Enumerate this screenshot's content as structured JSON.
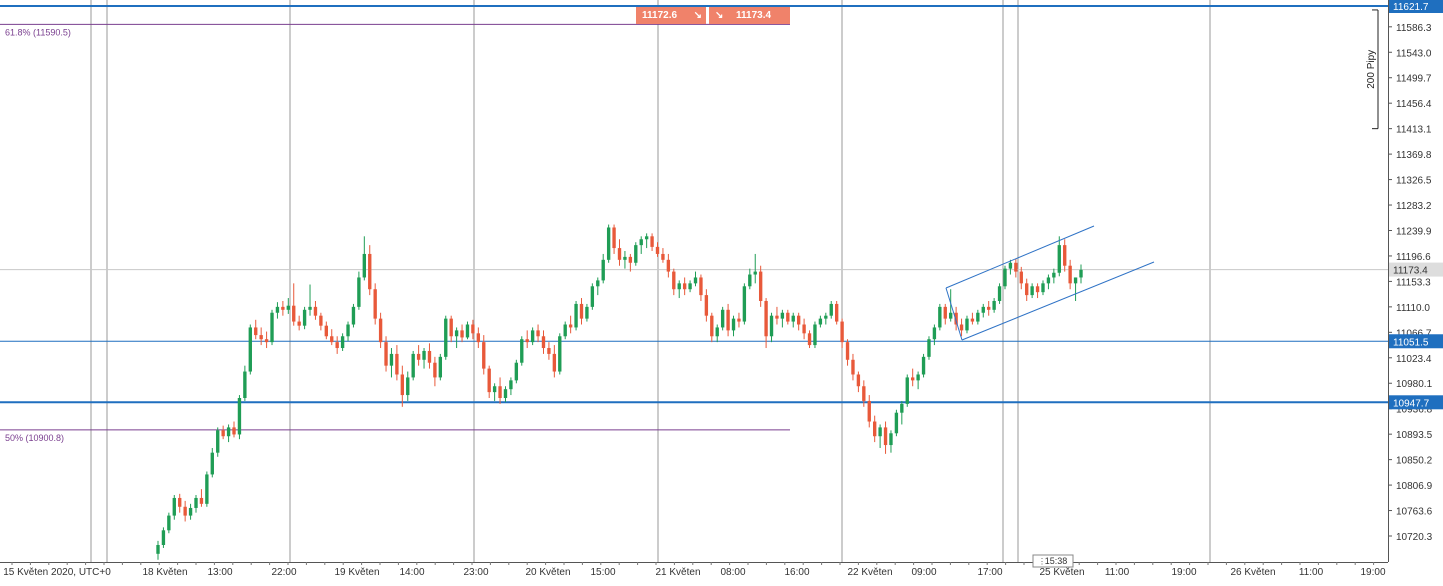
{
  "chart_data": {
    "type": "candlestick",
    "title": "",
    "y_axis": {
      "position": "right",
      "ticks": [
        11586.3,
        11543.0,
        11499.7,
        11456.4,
        11413.1,
        11369.8,
        11326.5,
        11283.2,
        11239.9,
        11196.6,
        11153.3,
        11110.0,
        11066.7,
        11023.4,
        10980.1,
        10936.8,
        10893.5,
        10850.2,
        10806.9,
        10763.6,
        10720.3
      ],
      "range": [
        10680,
        11635
      ]
    },
    "x_axis": {
      "timezone_label": "UTC+0",
      "ticks": [
        "15 Květen 2020, UTC+0",
        "18 Květen",
        "13:00",
        "22:00",
        "19 Květen",
        "14:00",
        "23:00",
        "20 Květen",
        "15:00",
        "21 Květen",
        "08:00",
        "16:00",
        "22 Květen",
        "09:00",
        "17:00",
        "25 Květen",
        "11:00",
        "19:00",
        "26 Květen",
        "11:00",
        "19:00"
      ]
    },
    "horizontal_levels": [
      {
        "value": 11621.7,
        "label": "11621.7",
        "color": "#1f6fbf",
        "style": "thick"
      },
      {
        "value": 11051.5,
        "label": "11051.5",
        "color": "#1f6fbf",
        "style": "thin"
      },
      {
        "value": 10947.7,
        "label": "10947.7",
        "color": "#1f6fbf",
        "style": "thick"
      }
    ],
    "fibonacci": [
      {
        "label": "61.8% (11590.5)",
        "value": 11590.5,
        "color": "#7a3f8f"
      },
      {
        "label": "50% (10900.8)",
        "value": 10900.8,
        "color": "#7a3f8f"
      }
    ],
    "current_price": {
      "value": 11173.4,
      "label": "11173.4"
    },
    "quote": {
      "sell": "11172.6",
      "buy": "11173.4"
    },
    "range_marker": {
      "label": "200 Pipy",
      "from": 11413.1,
      "to": 11615.0
    },
    "time_marker": "15:38",
    "trend_channel": {
      "upper": [
        [
          11139.5,
          11244.0
        ],
        [
          11150.0,
          11245.0
        ]
      ],
      "color": "#2f73c6"
    },
    "colors": {
      "up": "#1f9d55",
      "down": "#e8593a",
      "level": "#1f6fbf",
      "fib": "#7a3f8f"
    },
    "candles": [
      {
        "o": 10690,
        "h": 10712,
        "l": 10680,
        "c": 10705
      },
      {
        "o": 10705,
        "h": 10735,
        "l": 10700,
        "c": 10730
      },
      {
        "o": 10730,
        "h": 10760,
        "l": 10725,
        "c": 10755
      },
      {
        "o": 10755,
        "h": 10790,
        "l": 10748,
        "c": 10785
      },
      {
        "o": 10785,
        "h": 10792,
        "l": 10760,
        "c": 10770
      },
      {
        "o": 10770,
        "h": 10780,
        "l": 10745,
        "c": 10755
      },
      {
        "o": 10755,
        "h": 10775,
        "l": 10748,
        "c": 10768
      },
      {
        "o": 10768,
        "h": 10790,
        "l": 10760,
        "c": 10785
      },
      {
        "o": 10785,
        "h": 10800,
        "l": 10770,
        "c": 10775
      },
      {
        "o": 10775,
        "h": 10830,
        "l": 10770,
        "c": 10825
      },
      {
        "o": 10825,
        "h": 10870,
        "l": 10820,
        "c": 10862
      },
      {
        "o": 10862,
        "h": 10905,
        "l": 10855,
        "c": 10900
      },
      {
        "o": 10900,
        "h": 10908,
        "l": 10885,
        "c": 10890
      },
      {
        "o": 10890,
        "h": 10910,
        "l": 10880,
        "c": 10905
      },
      {
        "o": 10905,
        "h": 10915,
        "l": 10888,
        "c": 10893
      },
      {
        "o": 10893,
        "h": 10960,
        "l": 10885,
        "c": 10955
      },
      {
        "o": 10955,
        "h": 11010,
        "l": 10950,
        "c": 11000
      },
      {
        "o": 11000,
        "h": 11080,
        "l": 10995,
        "c": 11075
      },
      {
        "o": 11075,
        "h": 11088,
        "l": 11055,
        "c": 11062
      },
      {
        "o": 11062,
        "h": 11075,
        "l": 11045,
        "c": 11055
      },
      {
        "o": 11055,
        "h": 11068,
        "l": 11040,
        "c": 11050
      },
      {
        "o": 11050,
        "h": 11105,
        "l": 11045,
        "c": 11100
      },
      {
        "o": 11100,
        "h": 11118,
        "l": 11090,
        "c": 11110
      },
      {
        "o": 11110,
        "h": 11120,
        "l": 11095,
        "c": 11105
      },
      {
        "o": 11105,
        "h": 11125,
        "l": 11098,
        "c": 11112
      },
      {
        "o": 11112,
        "h": 11150,
        "l": 11078,
        "c": 11085
      },
      {
        "o": 11085,
        "h": 11095,
        "l": 11070,
        "c": 11078
      },
      {
        "o": 11078,
        "h": 11110,
        "l": 11072,
        "c": 11105
      },
      {
        "o": 11105,
        "h": 11148,
        "l": 11095,
        "c": 11110
      },
      {
        "o": 11110,
        "h": 11120,
        "l": 11088,
        "c": 11095
      },
      {
        "o": 11095,
        "h": 11100,
        "l": 11070,
        "c": 11078
      },
      {
        "o": 11078,
        "h": 11085,
        "l": 11055,
        "c": 11060
      },
      {
        "o": 11060,
        "h": 11072,
        "l": 11045,
        "c": 11050
      },
      {
        "o": 11050,
        "h": 11060,
        "l": 11030,
        "c": 11040
      },
      {
        "o": 11040,
        "h": 11065,
        "l": 11035,
        "c": 11060
      },
      {
        "o": 11060,
        "h": 11085,
        "l": 11052,
        "c": 11080
      },
      {
        "o": 11080,
        "h": 11115,
        "l": 11075,
        "c": 11110
      },
      {
        "o": 11110,
        "h": 11170,
        "l": 11105,
        "c": 11160
      },
      {
        "o": 11160,
        "h": 11230,
        "l": 11155,
        "c": 11200
      },
      {
        "o": 11200,
        "h": 11215,
        "l": 11130,
        "c": 11140
      },
      {
        "o": 11140,
        "h": 11150,
        "l": 11080,
        "c": 11090
      },
      {
        "o": 11090,
        "h": 11100,
        "l": 11040,
        "c": 11050
      },
      {
        "o": 11050,
        "h": 11060,
        "l": 11000,
        "c": 11010
      },
      {
        "o": 11010,
        "h": 11040,
        "l": 10990,
        "c": 11030
      },
      {
        "o": 11030,
        "h": 11045,
        "l": 10985,
        "c": 10995
      },
      {
        "o": 10995,
        "h": 11010,
        "l": 10940,
        "c": 10960
      },
      {
        "o": 10960,
        "h": 11000,
        "l": 10950,
        "c": 10990
      },
      {
        "o": 10990,
        "h": 11035,
        "l": 10985,
        "c": 11030
      },
      {
        "o": 11030,
        "h": 11045,
        "l": 11010,
        "c": 11020
      },
      {
        "o": 11020,
        "h": 11040,
        "l": 11005,
        "c": 11035
      },
      {
        "o": 11035,
        "h": 11048,
        "l": 11005,
        "c": 11015
      },
      {
        "o": 11015,
        "h": 11025,
        "l": 10975,
        "c": 10990
      },
      {
        "o": 10990,
        "h": 11030,
        "l": 10985,
        "c": 11025
      },
      {
        "o": 11025,
        "h": 11095,
        "l": 11020,
        "c": 11090
      },
      {
        "o": 11090,
        "h": 11095,
        "l": 11050,
        "c": 11060
      },
      {
        "o": 11060,
        "h": 11075,
        "l": 11040,
        "c": 11070
      },
      {
        "o": 11070,
        "h": 11080,
        "l": 11050,
        "c": 11058
      },
      {
        "o": 11058,
        "h": 11085,
        "l": 11055,
        "c": 11080
      },
      {
        "o": 11080,
        "h": 11088,
        "l": 11055,
        "c": 11065
      },
      {
        "o": 11065,
        "h": 11075,
        "l": 11040,
        "c": 11050
      },
      {
        "o": 11050,
        "h": 11062,
        "l": 10995,
        "c": 11005
      },
      {
        "o": 11005,
        "h": 11010,
        "l": 10955,
        "c": 10965
      },
      {
        "o": 10965,
        "h": 10980,
        "l": 10950,
        "c": 10975
      },
      {
        "o": 10975,
        "h": 10990,
        "l": 10945,
        "c": 10955
      },
      {
        "o": 10955,
        "h": 10975,
        "l": 10948,
        "c": 10970
      },
      {
        "o": 10970,
        "h": 10990,
        "l": 10960,
        "c": 10985
      },
      {
        "o": 10985,
        "h": 11020,
        "l": 10980,
        "c": 11015
      },
      {
        "o": 11015,
        "h": 11060,
        "l": 11010,
        "c": 11055
      },
      {
        "o": 11055,
        "h": 11070,
        "l": 11040,
        "c": 11050
      },
      {
        "o": 11050,
        "h": 11075,
        "l": 11045,
        "c": 11070
      },
      {
        "o": 11070,
        "h": 11080,
        "l": 11050,
        "c": 11060
      },
      {
        "o": 11060,
        "h": 11070,
        "l": 11030,
        "c": 11040
      },
      {
        "o": 11040,
        "h": 11050,
        "l": 11020,
        "c": 11030
      },
      {
        "o": 11030,
        "h": 11045,
        "l": 10990,
        "c": 11000
      },
      {
        "o": 11000,
        "h": 11065,
        "l": 10995,
        "c": 11060
      },
      {
        "o": 11060,
        "h": 11085,
        "l": 11055,
        "c": 11080
      },
      {
        "o": 11080,
        "h": 11095,
        "l": 11065,
        "c": 11075
      },
      {
        "o": 11075,
        "h": 11120,
        "l": 11070,
        "c": 11115
      },
      {
        "o": 11115,
        "h": 11125,
        "l": 11080,
        "c": 11090
      },
      {
        "o": 11090,
        "h": 11115,
        "l": 11085,
        "c": 11110
      },
      {
        "o": 11110,
        "h": 11150,
        "l": 11105,
        "c": 11145
      },
      {
        "o": 11145,
        "h": 11160,
        "l": 11130,
        "c": 11155
      },
      {
        "o": 11155,
        "h": 11200,
        "l": 11150,
        "c": 11190
      },
      {
        "o": 11190,
        "h": 11250,
        "l": 11185,
        "c": 11245
      },
      {
        "o": 11245,
        "h": 11250,
        "l": 11200,
        "c": 11210
      },
      {
        "o": 11210,
        "h": 11225,
        "l": 11180,
        "c": 11190
      },
      {
        "o": 11190,
        "h": 11205,
        "l": 11175,
        "c": 11195
      },
      {
        "o": 11195,
        "h": 11200,
        "l": 11170,
        "c": 11185
      },
      {
        "o": 11185,
        "h": 11220,
        "l": 11180,
        "c": 11215
      },
      {
        "o": 11215,
        "h": 11230,
        "l": 11200,
        "c": 11225
      },
      {
        "o": 11225,
        "h": 11235,
        "l": 11210,
        "c": 11230
      },
      {
        "o": 11230,
        "h": 11235,
        "l": 11205,
        "c": 11212
      },
      {
        "o": 11212,
        "h": 11220,
        "l": 11195,
        "c": 11200
      },
      {
        "o": 11200,
        "h": 11210,
        "l": 11185,
        "c": 11190
      },
      {
        "o": 11190,
        "h": 11200,
        "l": 11160,
        "c": 11170
      },
      {
        "o": 11170,
        "h": 11175,
        "l": 11130,
        "c": 11140
      },
      {
        "o": 11140,
        "h": 11155,
        "l": 11125,
        "c": 11150
      },
      {
        "o": 11150,
        "h": 11160,
        "l": 11130,
        "c": 11140
      },
      {
        "o": 11140,
        "h": 11155,
        "l": 11135,
        "c": 11150
      },
      {
        "o": 11150,
        "h": 11170,
        "l": 11145,
        "c": 11160
      },
      {
        "o": 11160,
        "h": 11165,
        "l": 11120,
        "c": 11130
      },
      {
        "o": 11130,
        "h": 11140,
        "l": 11085,
        "c": 11095
      },
      {
        "o": 11095,
        "h": 11100,
        "l": 11050,
        "c": 11060
      },
      {
        "o": 11060,
        "h": 11080,
        "l": 11050,
        "c": 11075
      },
      {
        "o": 11075,
        "h": 11110,
        "l": 11070,
        "c": 11105
      },
      {
        "o": 11105,
        "h": 11115,
        "l": 11060,
        "c": 11070
      },
      {
        "o": 11070,
        "h": 11095,
        "l": 11060,
        "c": 11090
      },
      {
        "o": 11090,
        "h": 11100,
        "l": 11075,
        "c": 11085
      },
      {
        "o": 11085,
        "h": 11150,
        "l": 11080,
        "c": 11145
      },
      {
        "o": 11145,
        "h": 11175,
        "l": 11140,
        "c": 11165
      },
      {
        "o": 11165,
        "h": 11200,
        "l": 11150,
        "c": 11170
      },
      {
        "o": 11170,
        "h": 11180,
        "l": 11110,
        "c": 11120
      },
      {
        "o": 11120,
        "h": 11125,
        "l": 11040,
        "c": 11060
      },
      {
        "o": 11060,
        "h": 11100,
        "l": 11050,
        "c": 11095
      },
      {
        "o": 11095,
        "h": 11110,
        "l": 11080,
        "c": 11090
      },
      {
        "o": 11090,
        "h": 11105,
        "l": 11075,
        "c": 11100
      },
      {
        "o": 11100,
        "h": 11105,
        "l": 11080,
        "c": 11085
      },
      {
        "o": 11085,
        "h": 11100,
        "l": 11075,
        "c": 11095
      },
      {
        "o": 11095,
        "h": 11100,
        "l": 11070,
        "c": 11080
      },
      {
        "o": 11080,
        "h": 11090,
        "l": 11055,
        "c": 11065
      },
      {
        "o": 11065,
        "h": 11070,
        "l": 11040,
        "c": 11045
      },
      {
        "o": 11045,
        "h": 11085,
        "l": 11040,
        "c": 11080
      },
      {
        "o": 11080,
        "h": 11095,
        "l": 11075,
        "c": 11090
      },
      {
        "o": 11090,
        "h": 11100,
        "l": 11080,
        "c": 11095
      },
      {
        "o": 11095,
        "h": 11120,
        "l": 11090,
        "c": 11115
      },
      {
        "o": 11115,
        "h": 11120,
        "l": 11080,
        "c": 11085
      },
      {
        "o": 11085,
        "h": 11090,
        "l": 11040,
        "c": 11050
      },
      {
        "o": 11050,
        "h": 11055,
        "l": 11010,
        "c": 11020
      },
      {
        "o": 11020,
        "h": 11030,
        "l": 10985,
        "c": 10995
      },
      {
        "o": 10995,
        "h": 11000,
        "l": 10965,
        "c": 10975
      },
      {
        "o": 10975,
        "h": 10985,
        "l": 10940,
        "c": 10950
      },
      {
        "o": 10950,
        "h": 10960,
        "l": 10905,
        "c": 10915
      },
      {
        "o": 10915,
        "h": 10925,
        "l": 10880,
        "c": 10890
      },
      {
        "o": 10890,
        "h": 10910,
        "l": 10870,
        "c": 10905
      },
      {
        "o": 10905,
        "h": 10915,
        "l": 10860,
        "c": 10875
      },
      {
        "o": 10875,
        "h": 10900,
        "l": 10862,
        "c": 10895
      },
      {
        "o": 10895,
        "h": 10935,
        "l": 10890,
        "c": 10930
      },
      {
        "o": 10930,
        "h": 10950,
        "l": 10910,
        "c": 10945
      },
      {
        "o": 10945,
        "h": 10995,
        "l": 10940,
        "c": 10990
      },
      {
        "o": 10990,
        "h": 11005,
        "l": 10975,
        "c": 10985
      },
      {
        "o": 10985,
        "h": 11000,
        "l": 10970,
        "c": 10995
      },
      {
        "o": 10995,
        "h": 11030,
        "l": 10990,
        "c": 11025
      },
      {
        "o": 11025,
        "h": 11060,
        "l": 11020,
        "c": 11055
      },
      {
        "o": 11055,
        "h": 11080,
        "l": 11045,
        "c": 11075
      },
      {
        "o": 11075,
        "h": 11115,
        "l": 11070,
        "c": 11110
      },
      {
        "o": 11110,
        "h": 11115,
        "l": 11080,
        "c": 11090
      },
      {
        "o": 11090,
        "h": 11140,
        "l": 11085,
        "c": 11100
      },
      {
        "o": 11100,
        "h": 11110,
        "l": 11070,
        "c": 11080
      },
      {
        "o": 11080,
        "h": 11090,
        "l": 11060,
        "c": 11070
      },
      {
        "o": 11070,
        "h": 11095,
        "l": 11065,
        "c": 11090
      },
      {
        "o": 11090,
        "h": 11100,
        "l": 11080,
        "c": 11085
      },
      {
        "o": 11085,
        "h": 11105,
        "l": 11080,
        "c": 11100
      },
      {
        "o": 11100,
        "h": 11115,
        "l": 11092,
        "c": 11110
      },
      {
        "o": 11110,
        "h": 11120,
        "l": 11095,
        "c": 11105
      },
      {
        "o": 11105,
        "h": 11125,
        "l": 11100,
        "c": 11120
      },
      {
        "o": 11120,
        "h": 11150,
        "l": 11115,
        "c": 11145
      },
      {
        "o": 11145,
        "h": 11180,
        "l": 11140,
        "c": 11175
      },
      {
        "o": 11175,
        "h": 11190,
        "l": 11165,
        "c": 11185
      },
      {
        "o": 11185,
        "h": 11192,
        "l": 11160,
        "c": 11170
      },
      {
        "o": 11170,
        "h": 11178,
        "l": 11140,
        "c": 11150
      },
      {
        "o": 11150,
        "h": 11158,
        "l": 11120,
        "c": 11130
      },
      {
        "o": 11130,
        "h": 11150,
        "l": 11125,
        "c": 11145
      },
      {
        "o": 11145,
        "h": 11150,
        "l": 11125,
        "c": 11135
      },
      {
        "o": 11135,
        "h": 11155,
        "l": 11130,
        "c": 11150
      },
      {
        "o": 11150,
        "h": 11165,
        "l": 11140,
        "c": 11160
      },
      {
        "o": 11160,
        "h": 11175,
        "l": 11150,
        "c": 11168
      },
      {
        "o": 11168,
        "h": 11230,
        "l": 11162,
        "c": 11215
      },
      {
        "o": 11215,
        "h": 11225,
        "l": 11170,
        "c": 11180
      },
      {
        "o": 11180,
        "h": 11190,
        "l": 11140,
        "c": 11150
      },
      {
        "o": 11150,
        "h": 11160,
        "l": 11120,
        "c": 11160
      },
      {
        "o": 11160,
        "h": 11182,
        "l": 11150,
        "c": 11173
      }
    ]
  }
}
